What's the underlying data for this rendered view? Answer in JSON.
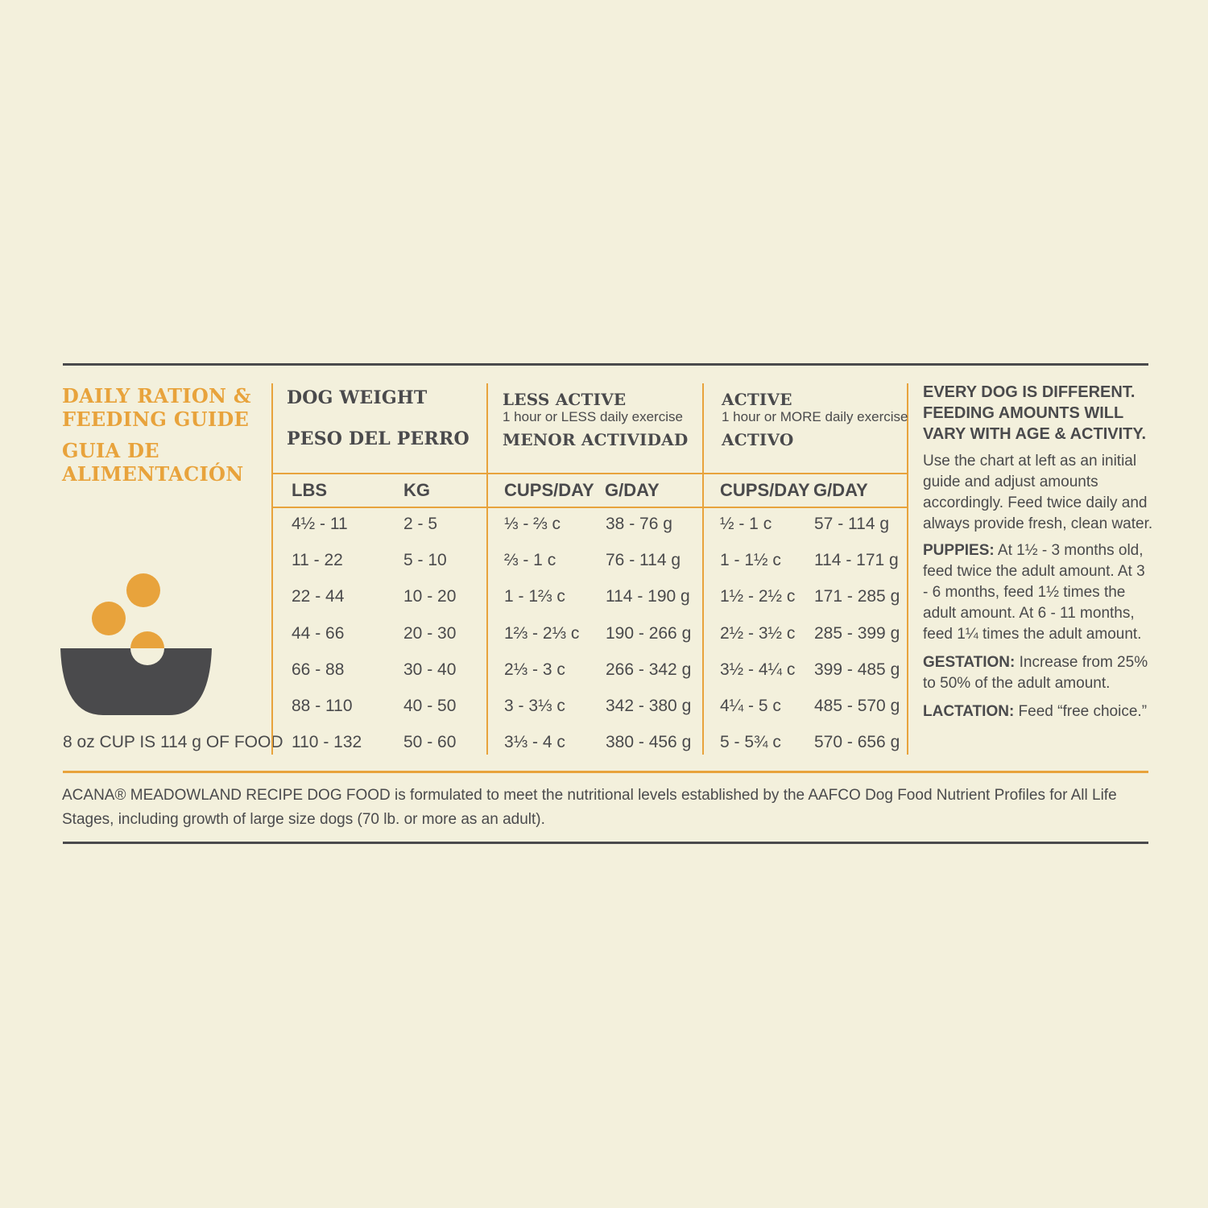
{
  "heading": {
    "en_line1": "DAILY RATION &",
    "en_line2": "FEEDING GUIDE",
    "es_line1": "GUIA DE",
    "es_line2": "ALIMENTACIÓN"
  },
  "cup_note": "8 oz CUP IS 114 g OF FOOD",
  "groups": {
    "weight": {
      "en": "DOG WEIGHT",
      "es": "PESO DEL PERRO"
    },
    "less_active": {
      "en": "LESS ACTIVE",
      "sub": "1 hour or LESS daily exercise",
      "es": "MENOR ACTIVIDAD"
    },
    "active": {
      "en": "ACTIVE",
      "sub": "1 hour or MORE daily exercise",
      "es": "ACTIVO"
    }
  },
  "columns": [
    "LBS",
    "KG",
    "CUPS/DAY",
    "G/DAY",
    "CUPS/DAY",
    "G/DAY"
  ],
  "rows": [
    [
      "4½ - 11",
      "2 - 5",
      "⅓ - ⅔ c",
      "38 - 76 g",
      "½ - 1 c",
      "57 - 114 g"
    ],
    [
      "11 - 22",
      "5 - 10",
      "⅔ - 1 c",
      "76 - 114 g",
      "1 - 1½ c",
      "114 - 171 g"
    ],
    [
      "22 - 44",
      "10 - 20",
      "1 - 1⅔ c",
      "114 - 190 g",
      "1½ - 2½ c",
      "171 - 285 g"
    ],
    [
      "44 - 66",
      "20 - 30",
      "1⅔ - 2⅓ c",
      "190 - 266 g",
      "2½ - 3½ c",
      "285 - 399 g"
    ],
    [
      "66 - 88",
      "30 - 40",
      "2⅓ - 3 c",
      "266 - 342 g",
      "3½ - 4¼ c",
      "399 - 485 g"
    ],
    [
      "88 - 110",
      "40 - 50",
      "3 - 3⅓ c",
      "342 - 380 g",
      "4¼ - 5 c",
      "485 - 570 g"
    ],
    [
      "110 - 132",
      "50 - 60",
      "3⅓ - 4 c",
      "380 - 456 g",
      "5 - 5¾ c",
      "570 - 656 g"
    ]
  ],
  "notes": {
    "headline": "EVERY DOG IS DIFFERENT. FEEDING AMOUNTS WILL VARY WITH AGE & ACTIVITY.",
    "intro": "Use the chart at left as an initial guide and adjust amounts accordingly. Feed twice daily and always provide fresh, clean water.",
    "puppies_label": "PUPPIES:",
    "puppies_text": " At 1½ - 3 months old, feed twice the adult amount. At 3 - 6 months, feed 1½ times the adult amount. At 6 - 11 months, feed 1¼ times the adult amount.",
    "gestation_label": "GESTATION:",
    "gestation_text": " Increase from 25% to 50% of the adult amount.",
    "lactation_label": "LACTATION:",
    "lactation_text": " Feed “free choice.”"
  },
  "footer": "ACANA® MEADOWLAND RECIPE DOG FOOD is formulated to meet the nutritional levels established by the AAFCO Dog Food Nutrient Profiles for All Life Stages, including growth of large size dogs (70 lb. or more as an adult).",
  "colors": {
    "background": "#f3f0dc",
    "accent": "#e8a33c",
    "text": "#4a4a4c"
  },
  "icons": [
    "bowl-icon"
  ]
}
